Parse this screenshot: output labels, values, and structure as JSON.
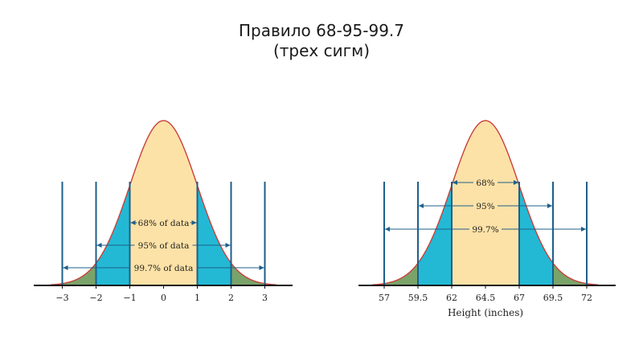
{
  "slide": {
    "title_line1": "Правило 68-95-99.7",
    "title_line2": "(трех сигм)"
  },
  "colors": {
    "center": "#fde2a7",
    "band": "#23b9d4",
    "tail": "#7aa36a",
    "curve": "#c9403a",
    "line": "#1e5f8a",
    "axis": "#111111"
  },
  "left_diagram": {
    "ticks": [
      "−3",
      "−2",
      "−1",
      "0",
      "1",
      "2",
      "3"
    ],
    "arrows": [
      "68% of data",
      "95% of data",
      "99.7% of data"
    ]
  },
  "right_diagram": {
    "ticks": [
      "57",
      "59.5",
      "62",
      "64.5",
      "67",
      "69.5",
      "72"
    ],
    "arrows": [
      "68%",
      "95%",
      "99.7%"
    ],
    "xlabel": "Height (inches)"
  }
}
